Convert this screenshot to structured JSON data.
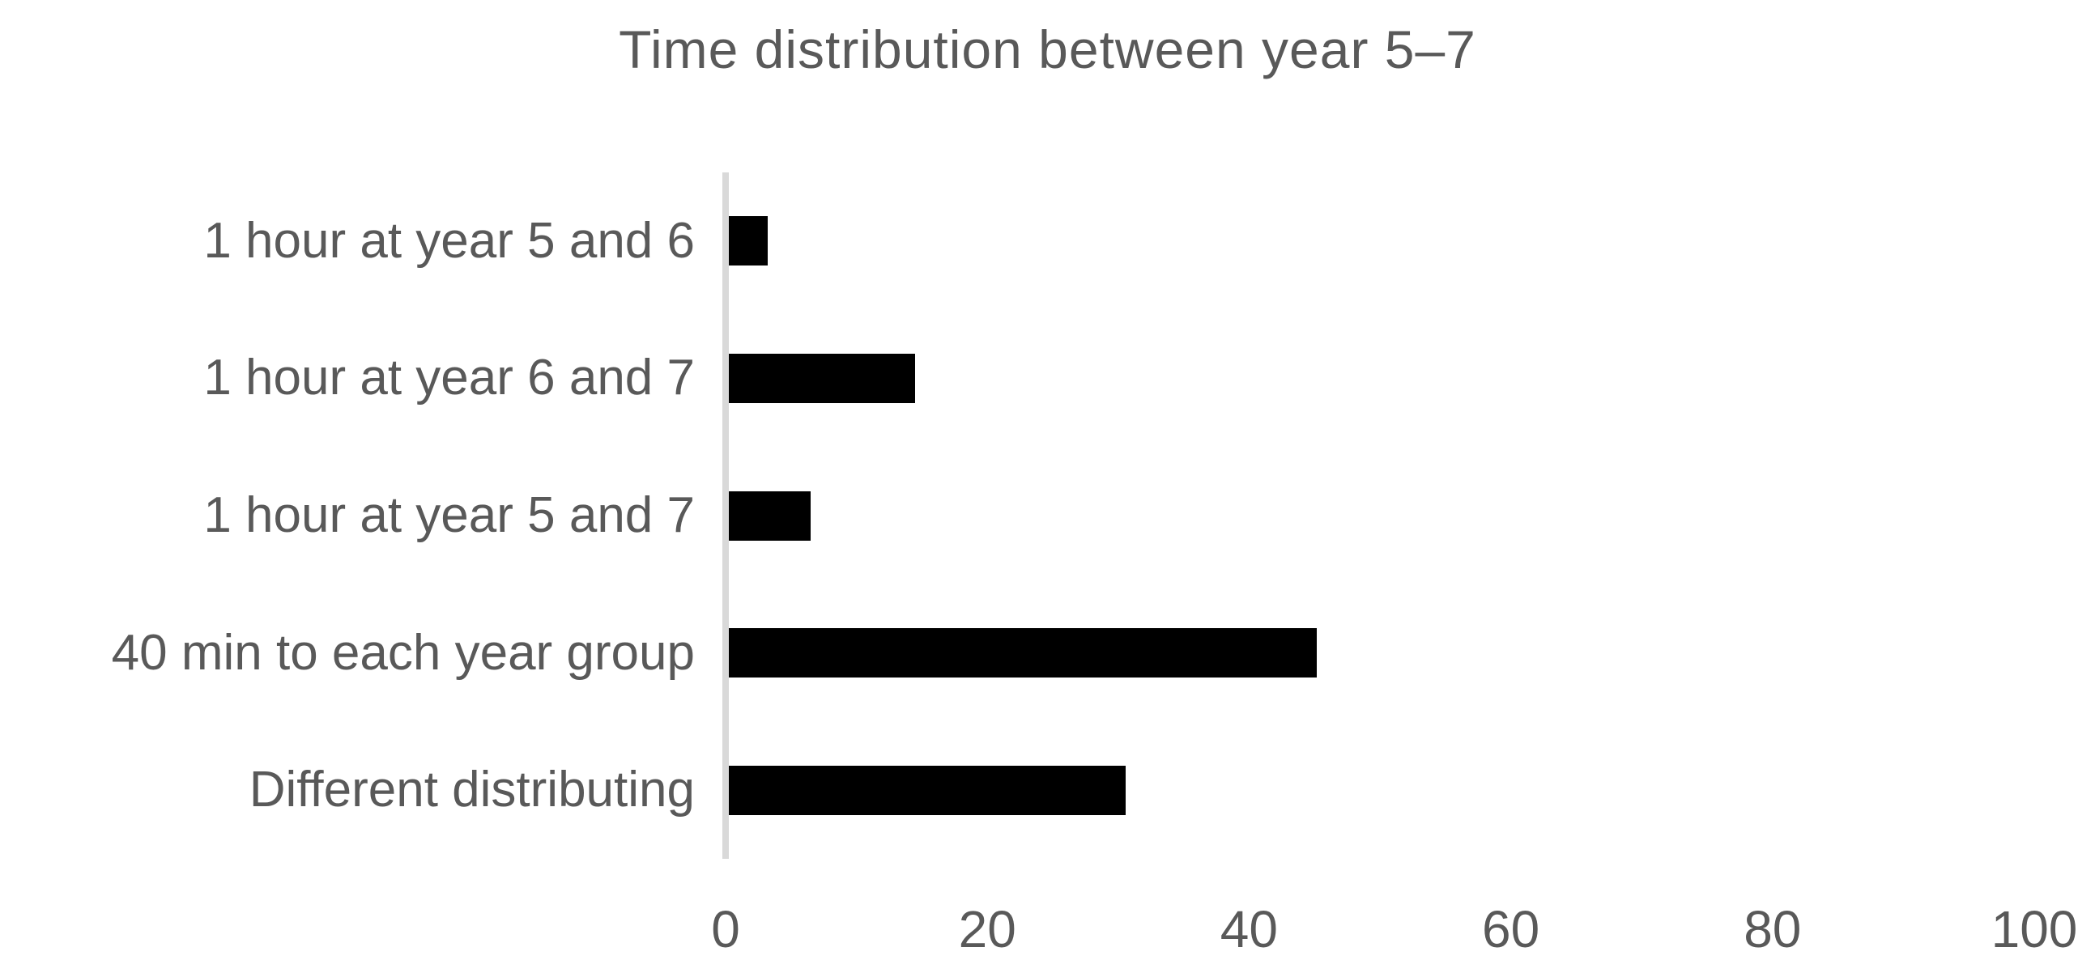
{
  "chart_data": {
    "type": "bar",
    "orientation": "horizontal",
    "title": "Time distribution between year 5–7",
    "categories": [
      "1 hour at year 5 and 6",
      "1 hour at year 6 and 7",
      "1 hour at year 5 and 7",
      "40 min to each year group",
      "Different distributing"
    ],
    "values": [
      3.2,
      14.5,
      6.5,
      45.2,
      30.6
    ],
    "xlabel": "",
    "ylabel": "",
    "xlim": [
      0,
      100
    ],
    "xticks": [
      0,
      20,
      40,
      60,
      80,
      100
    ],
    "grid": false,
    "legend": false,
    "colors": {
      "bar": "#000000",
      "text": "#595959",
      "axis_line": "#d9d9d9",
      "background": "#ffffff"
    }
  }
}
